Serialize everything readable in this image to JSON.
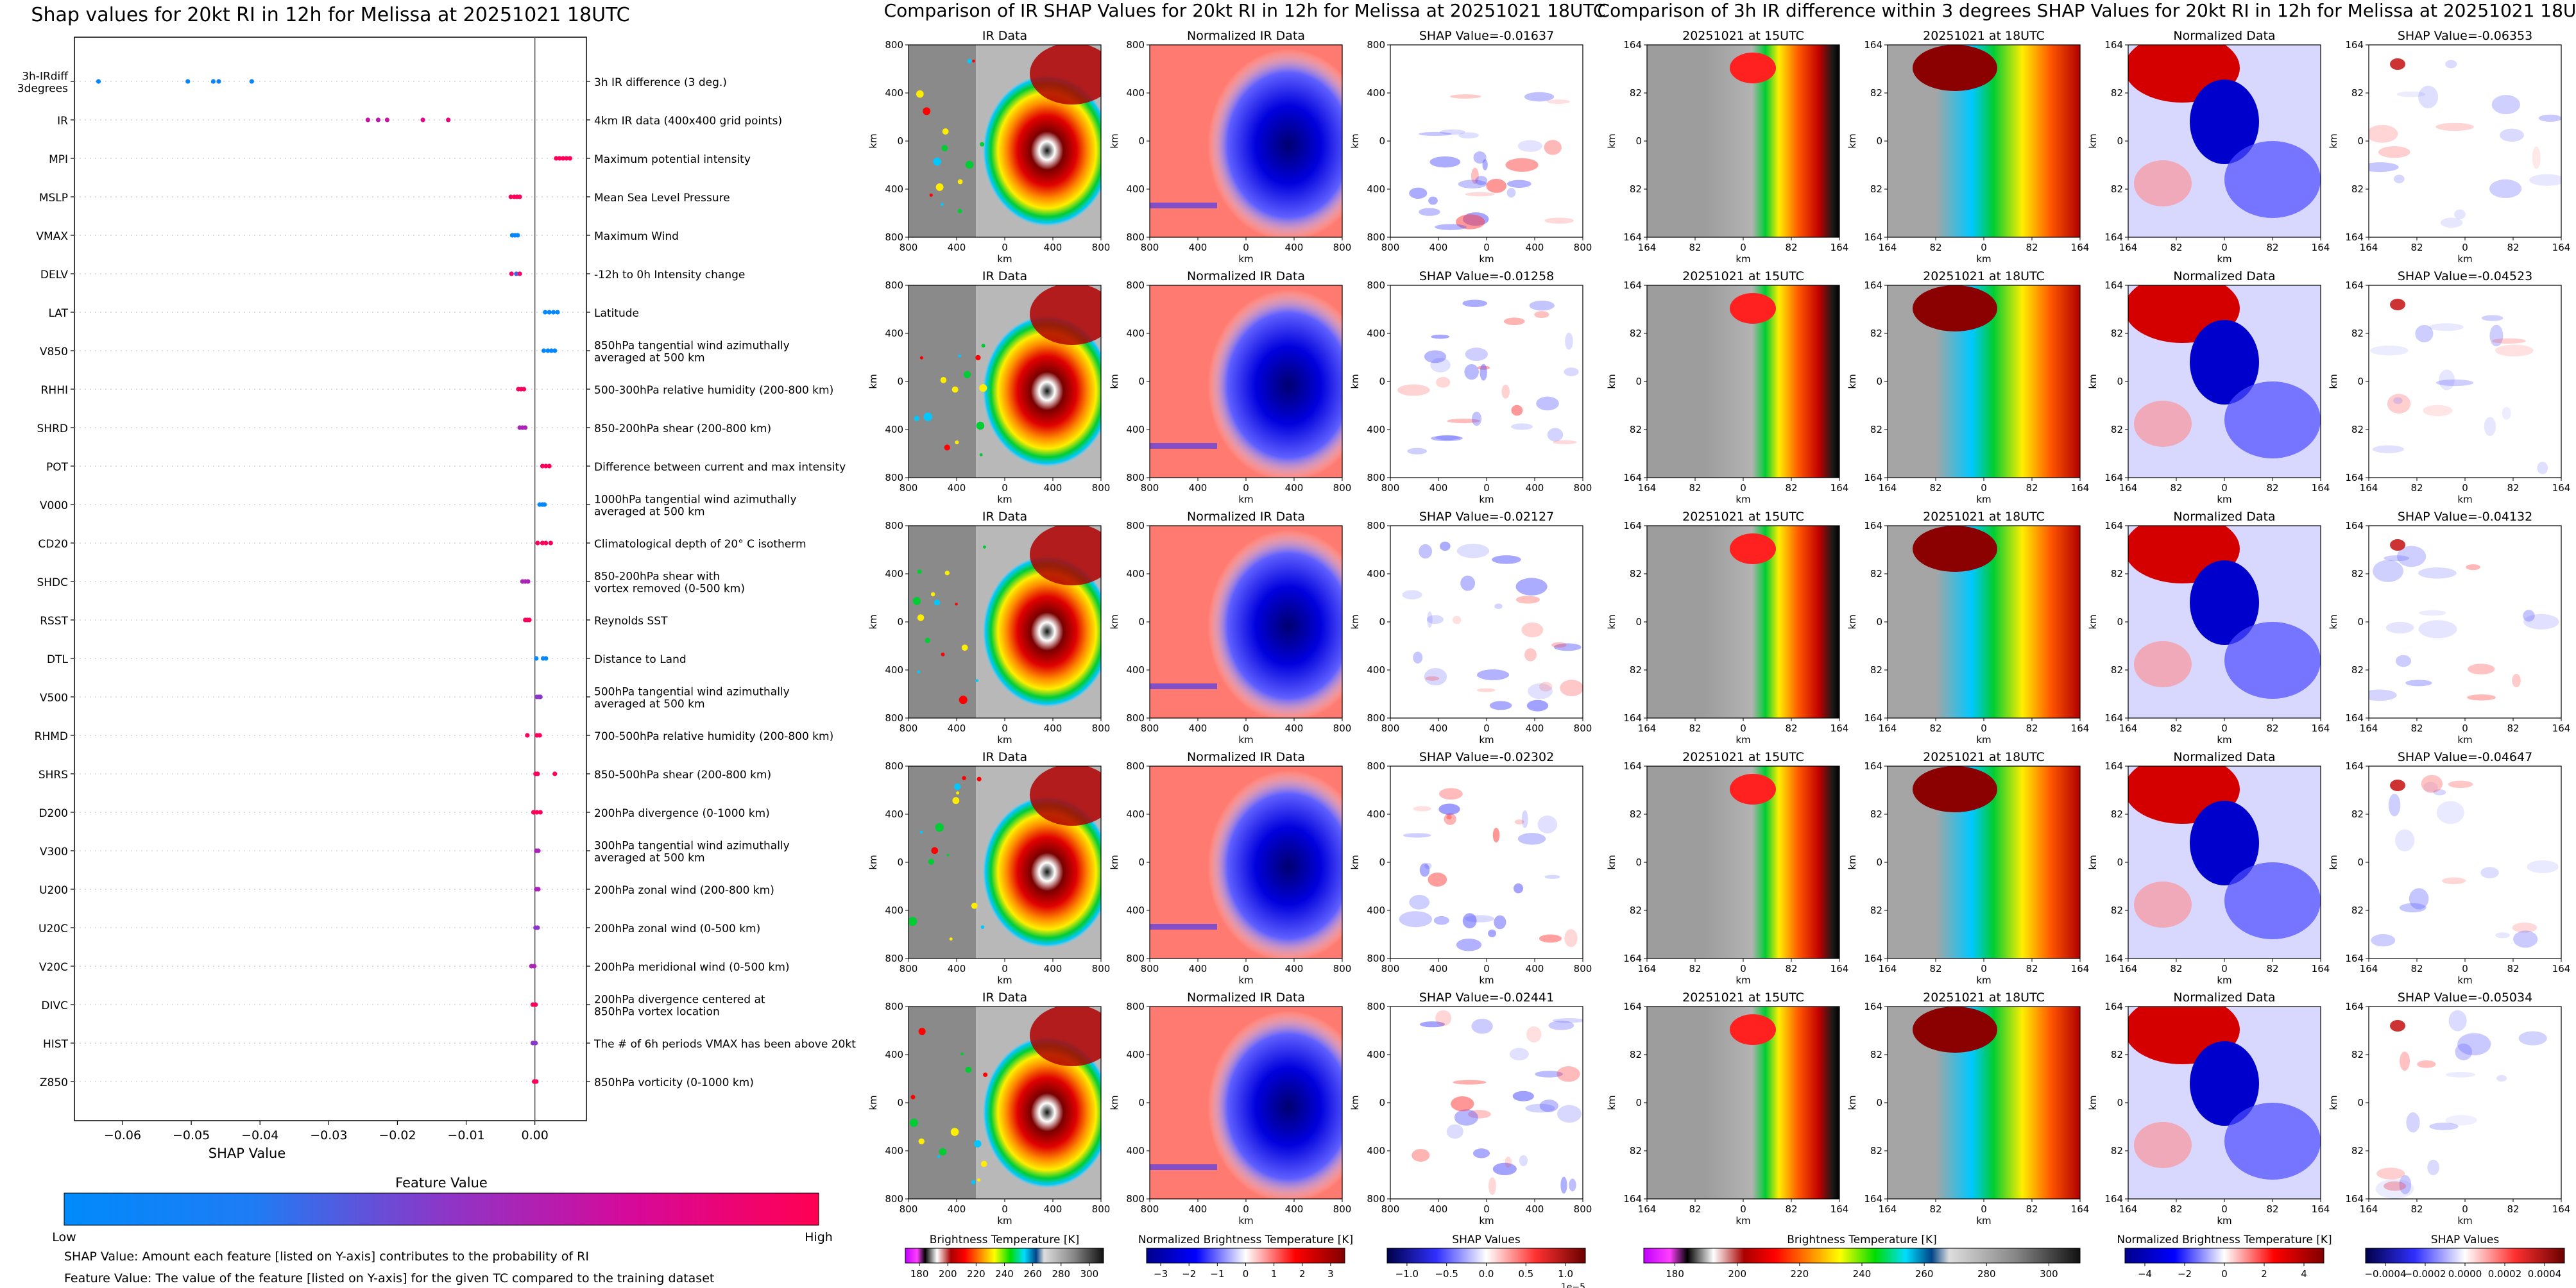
{
  "chart_data": [
    {
      "type": "scatter",
      "title": "Shap values for 20kt RI in 12h for Melissa at 20251021 18UTC",
      "xlabel": "SHAP Value",
      "xlim": [
        -0.067,
        0.0075
      ],
      "xticks": [
        -0.06,
        -0.05,
        -0.04,
        -0.03,
        -0.02,
        -0.01,
        0.0
      ],
      "xtick_labels": [
        "−0.06",
        "−0.05",
        "−0.04",
        "−0.03",
        "−0.02",
        "−0.01",
        "0.00"
      ],
      "colorbar": {
        "title": "Feature Value",
        "low": "Low",
        "high": "High"
      },
      "footnotes": [
        "SHAP Value: Amount each feature [listed on Y-axis] contributes to the probability of RI",
        "Feature Value: The value of the feature [listed on Y-axis] for the given TC compared to the training dataset"
      ],
      "features": [
        {
          "name": "3h-IRdiff\n3degrees",
          "desc": "3h IR difference (3 deg.)",
          "points": [
            [
              -0.0635,
              0.05
            ],
            [
              -0.0505,
              0.1
            ],
            [
              -0.0468,
              0.07
            ],
            [
              -0.046,
              0.12
            ],
            [
              -0.0412,
              0.1
            ]
          ]
        },
        {
          "name": "IR",
          "desc": "4km IR data (400x400 grid points)",
          "points": [
            [
              -0.0243,
              0.7
            ],
            [
              -0.0228,
              0.65
            ],
            [
              -0.0215,
              0.7
            ],
            [
              -0.0163,
              0.8
            ],
            [
              -0.0126,
              0.85
            ]
          ]
        },
        {
          "name": "MPI",
          "desc": "Maximum potential intensity",
          "points": [
            [
              0.0031,
              0.98
            ],
            [
              0.0036,
              0.98
            ],
            [
              0.0041,
              0.98
            ],
            [
              0.0046,
              0.98
            ],
            [
              0.0051,
              0.98
            ]
          ]
        },
        {
          "name": "MSLP",
          "desc": "Mean Sea Level Pressure",
          "points": [
            [
              -0.0035,
              0.97
            ],
            [
              -0.003,
              0.97
            ],
            [
              -0.0026,
              0.97
            ],
            [
              -0.0022,
              0.97
            ]
          ]
        },
        {
          "name": "VMAX",
          "desc": "Maximum Wind",
          "points": [
            [
              -0.0033,
              0.05
            ],
            [
              -0.0029,
              0.05
            ],
            [
              -0.0025,
              0.05
            ]
          ]
        },
        {
          "name": "DELV",
          "desc": "-12h to 0h Intensity change",
          "points": [
            [
              -0.0034,
              0.9
            ],
            [
              -0.0027,
              0.35
            ],
            [
              -0.0022,
              0.9
            ]
          ]
        },
        {
          "name": "LAT",
          "desc": "Latitude",
          "points": [
            [
              0.0015,
              0.05
            ],
            [
              0.0021,
              0.05
            ],
            [
              0.0027,
              0.05
            ],
            [
              0.0033,
              0.05
            ]
          ]
        },
        {
          "name": "V850",
          "desc": "850hPa tangential wind azimuthally\naveraged at 500 km",
          "points": [
            [
              0.0013,
              0.05
            ],
            [
              0.0019,
              0.05
            ],
            [
              0.0024,
              0.05
            ],
            [
              0.0029,
              0.05
            ]
          ]
        },
        {
          "name": "RHHI",
          "desc": "500-300hPa relative humidity (200-800 km)",
          "points": [
            [
              -0.0024,
              0.95
            ],
            [
              -0.002,
              0.95
            ],
            [
              -0.0016,
              0.95
            ]
          ]
        },
        {
          "name": "SHRD",
          "desc": "850-200hPa shear (200-800 km)",
          "points": [
            [
              -0.0022,
              0.6
            ],
            [
              -0.0018,
              0.6
            ],
            [
              -0.0014,
              0.6
            ]
          ]
        },
        {
          "name": "POT",
          "desc": "Difference between current and max intensity",
          "points": [
            [
              0.0011,
              0.97
            ],
            [
              0.0016,
              0.97
            ],
            [
              0.0021,
              0.97
            ]
          ]
        },
        {
          "name": "V000",
          "desc": "1000hPa tangential wind azimuthally\naveraged at 500 km",
          "points": [
            [
              0.0007,
              0.05
            ],
            [
              0.0011,
              0.05
            ],
            [
              0.0014,
              0.05
            ]
          ]
        },
        {
          "name": "CD20",
          "desc": "Climatological depth of 20° C isotherm",
          "points": [
            [
              0.0004,
              0.97
            ],
            [
              0.0011,
              0.97
            ],
            [
              0.0016,
              0.97
            ],
            [
              0.0023,
              0.97
            ]
          ]
        },
        {
          "name": "SHDC",
          "desc": "850-200hPa shear with\nvortex removed (0-500 km)",
          "points": [
            [
              -0.0018,
              0.6
            ],
            [
              -0.0014,
              0.6
            ],
            [
              -0.001,
              0.6
            ]
          ]
        },
        {
          "name": "RSST",
          "desc": "Reynolds SST",
          "points": [
            [
              -0.0014,
              0.97
            ],
            [
              -0.0011,
              0.97
            ],
            [
              -0.0008,
              0.97
            ]
          ]
        },
        {
          "name": "DTL",
          "desc": "Distance to Land",
          "points": [
            [
              0.0002,
              0.05
            ],
            [
              0.0012,
              0.05
            ],
            [
              0.0016,
              0.05
            ]
          ]
        },
        {
          "name": "V500",
          "desc": "500hPa tangential wind azimuthally\naveraged at 500 km",
          "points": [
            [
              0.0003,
              0.5
            ],
            [
              0.0006,
              0.5
            ],
            [
              0.0008,
              0.5
            ]
          ]
        },
        {
          "name": "RHMD",
          "desc": "700-500hPa relative humidity (200-800 km)",
          "points": [
            [
              -0.0011,
              0.97
            ],
            [
              0.0003,
              0.97
            ],
            [
              0.0007,
              0.97
            ]
          ]
        },
        {
          "name": "SHRS",
          "desc": "850-500hPa shear (200-800 km)",
          "points": [
            [
              0.0001,
              0.97
            ],
            [
              0.0004,
              0.97
            ],
            [
              0.0029,
              0.97
            ]
          ]
        },
        {
          "name": "D200",
          "desc": "200hPa divergence (0-1000 km)",
          "points": [
            [
              -0.0002,
              0.97
            ],
            [
              0.0003,
              0.97
            ],
            [
              0.0008,
              0.97
            ]
          ]
        },
        {
          "name": "V300",
          "desc": "300hPa tangential wind azimuthally\naveraged at 500 km",
          "points": [
            [
              0.0002,
              0.6
            ],
            [
              0.0005,
              0.6
            ]
          ]
        },
        {
          "name": "U200",
          "desc": "200hPa zonal wind (200-800 km)",
          "points": [
            [
              0.0002,
              0.6
            ],
            [
              0.0005,
              0.6
            ]
          ]
        },
        {
          "name": "U20C",
          "desc": "200hPa zonal wind (0-500 km)",
          "points": [
            [
              0.0001,
              0.5
            ],
            [
              0.0004,
              0.5
            ]
          ]
        },
        {
          "name": "V20C",
          "desc": "200hPa meridional wind (0-500 km)",
          "points": [
            [
              -0.0005,
              0.6
            ],
            [
              -0.0001,
              0.6
            ]
          ]
        },
        {
          "name": "DIVC",
          "desc": "200hPa divergence centered at\n850hPa vortex location",
          "points": [
            [
              -0.0003,
              0.97
            ],
            [
              0.0001,
              0.97
            ]
          ]
        },
        {
          "name": "HIST",
          "desc": "The # of 6h periods VMAX has been above 20kt",
          "points": [
            [
              -0.0003,
              0.5
            ],
            [
              0.0001,
              0.5
            ]
          ]
        },
        {
          "name": "Z850",
          "desc": "850hPa vorticity (0-1000 km)",
          "points": [
            [
              -0.0001,
              0.97
            ],
            [
              0.0002,
              0.97
            ]
          ]
        }
      ]
    },
    {
      "type": "heatmap",
      "title": "Comparison of IR SHAP Values for 20kt RI in 12h for Melissa at 20251021 18UTC",
      "panel_titles": [
        "IR Data",
        "Normalized IR Data"
      ],
      "shap_titles": [
        "SHAP Value=-0.01637",
        "SHAP Value=-0.01258",
        "SHAP Value=-0.02127",
        "SHAP Value=-0.02302",
        "SHAP Value=-0.02441"
      ],
      "xtick_labels": [
        "800",
        "400",
        "0",
        "400",
        "800"
      ],
      "ytick_labels": [
        "800",
        "400",
        "0",
        "400",
        "800"
      ],
      "axis_label": "km",
      "colorbars": [
        {
          "title": "Brightness Temperature [K]",
          "ticks": [
            "180",
            "200",
            "220",
            "240",
            "260",
            "280",
            "300"
          ]
        },
        {
          "title": "Normalized Brightness Temperature [K]",
          "ticks": [
            "−3",
            "−2",
            "−1",
            "0",
            "1",
            "2",
            "3"
          ]
        },
        {
          "title": "SHAP Values",
          "ticks": [
            "−1.0",
            "−0.5",
            "0.0",
            "0.5",
            "1.0"
          ],
          "exponent": "1e−5"
        }
      ]
    },
    {
      "type": "heatmap",
      "title": "Comparison of 3h IR difference within 3 degrees SHAP Values for 20kt RI in 12h for Melissa at 20251021 18UTC",
      "panel_titles": [
        "20251021 at 15UTC",
        "20251021 at 18UTC",
        "Normalized Data"
      ],
      "shap_titles": [
        "SHAP Value=-0.06353",
        "SHAP Value=-0.04523",
        "SHAP Value=-0.04132",
        "SHAP Value=-0.04647",
        "SHAP Value=-0.05034"
      ],
      "xtick_labels": [
        "164",
        "82",
        "0",
        "82",
        "164"
      ],
      "ytick_labels": [
        "164",
        "82",
        "0",
        "82",
        "164"
      ],
      "axis_label": "km",
      "colorbars": [
        {
          "title": "Brightness Temperature [K]",
          "ticks": [
            "180",
            "200",
            "220",
            "240",
            "260",
            "280",
            "300"
          ]
        },
        {
          "title": "Normalized Brightness Temperature [K]",
          "ticks": [
            "−4",
            "−2",
            "0",
            "2",
            "4"
          ]
        },
        {
          "title": "SHAP Values",
          "ticks": [
            "−0.0004",
            "−0.0002",
            "0.0000",
            "0.0002",
            "0.0004"
          ]
        }
      ]
    }
  ]
}
